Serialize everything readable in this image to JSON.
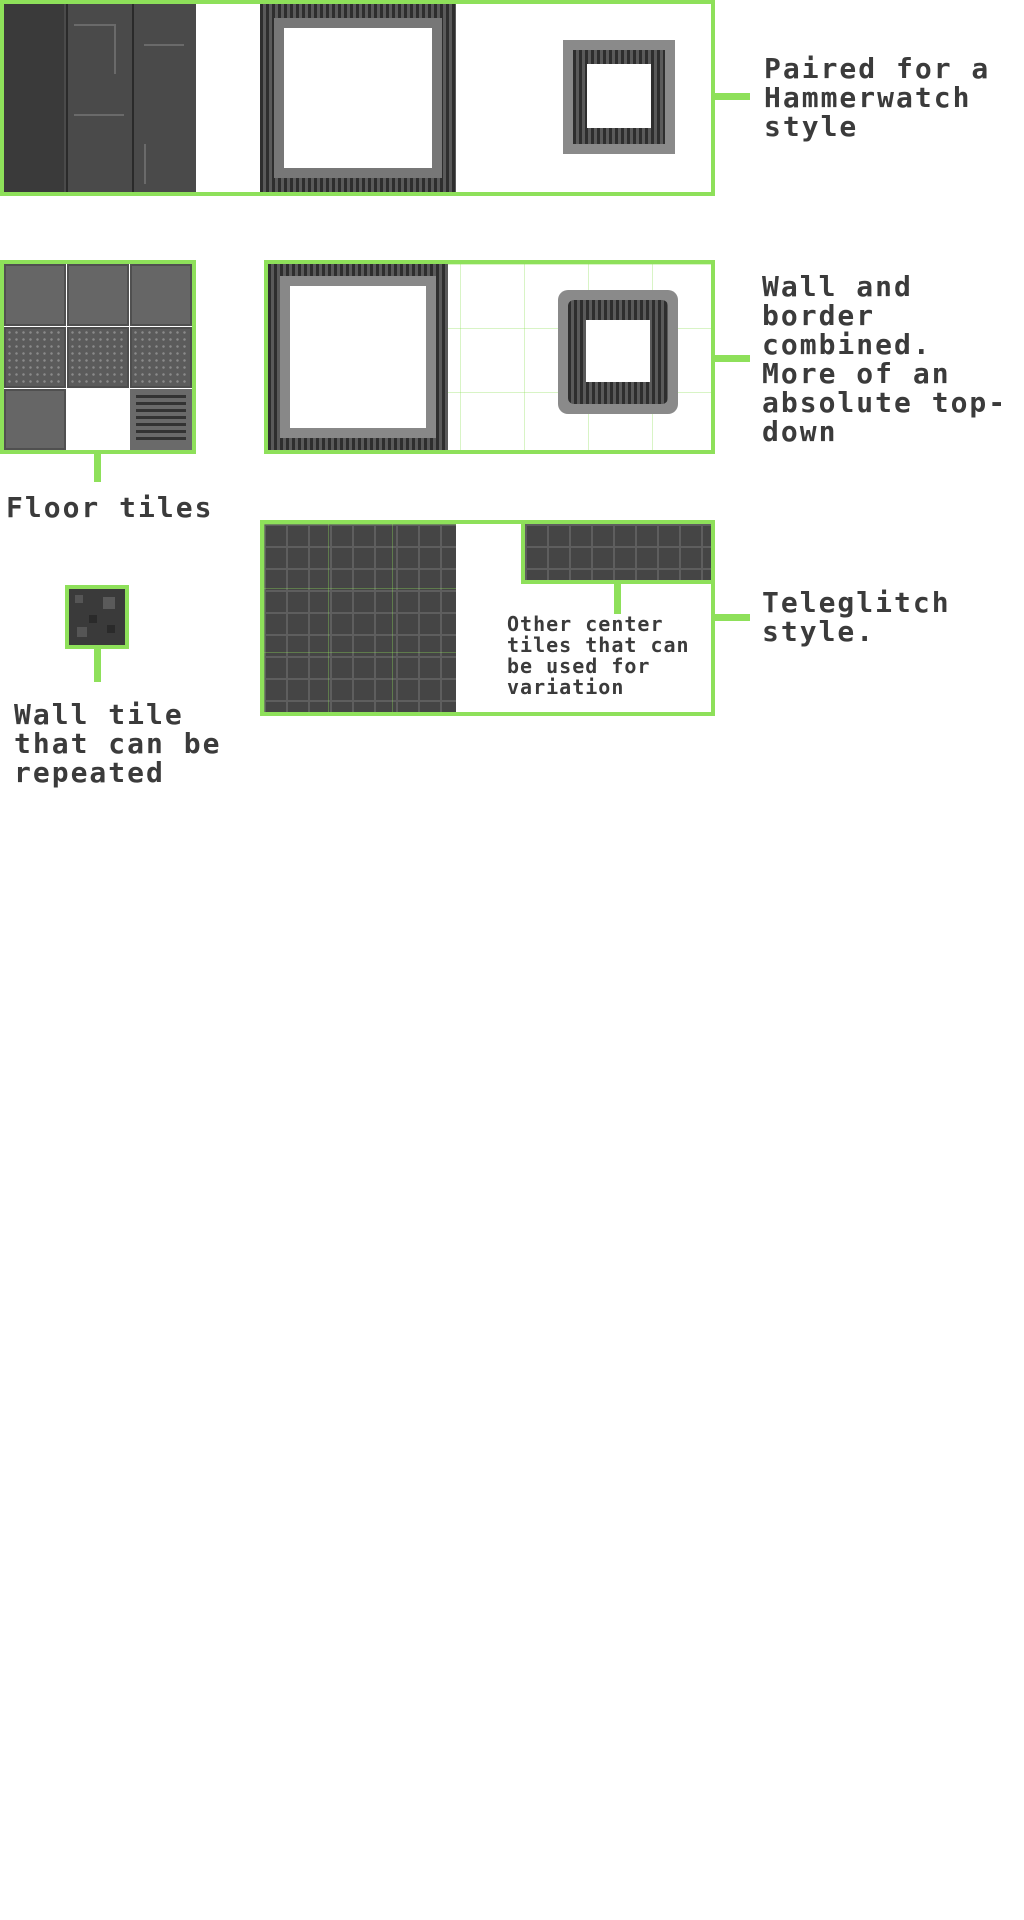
{
  "labels": {
    "hammerwatch": "Paired for a\nHammerwatch\nstyle",
    "wall_border": "Wall and\nborder\ncombined.\nMore of an\nabsolute top-\ndown",
    "floor_tiles": "Floor tiles",
    "teleglitch": "Teleglitch\nstyle.",
    "other_center": "Other center\ntiles that can\nbe used for\nvariation",
    "wall_tile": "Wall tile\nthat can be\nrepeated"
  },
  "colors": {
    "accent_green": "#8ee05a",
    "text": "#3b3b3b",
    "tile_dark": "#3a3a3a"
  }
}
